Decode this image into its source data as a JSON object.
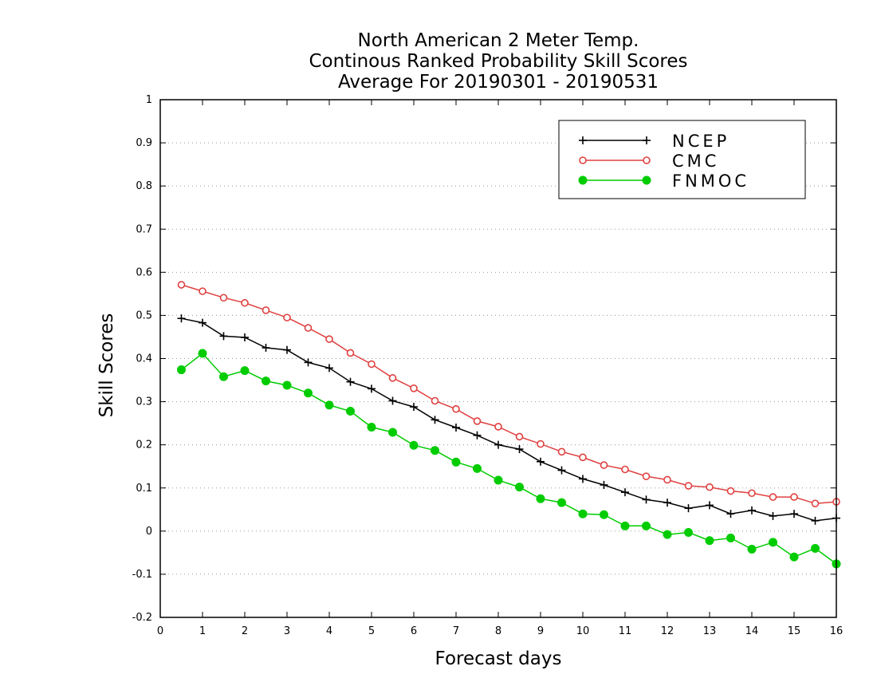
{
  "chart_data": {
    "type": "line",
    "title": [
      "North American 2 Meter Temp.",
      "Continous Ranked Probability Skill Scores",
      "Average For 20190301 - 20190531"
    ],
    "xlabel": "Forecast days",
    "ylabel": "Skill Scores",
    "xlim": [
      0,
      16
    ],
    "ylim": [
      -0.2,
      1
    ],
    "xticks": [
      "0",
      "1",
      "2",
      "3",
      "4",
      "5",
      "6",
      "7",
      "8",
      "9",
      "10",
      "11",
      "12",
      "13",
      "14",
      "15",
      "16"
    ],
    "yticks": [
      "-0.2",
      "-0.1",
      "0",
      "0.1",
      "0.2",
      "0.3",
      "0.4",
      "0.5",
      "0.6",
      "0.7",
      "0.8",
      "0.9",
      "1"
    ],
    "grid": "horizontal-dotted",
    "legend_position": "top-right",
    "x": [
      0.5,
      1,
      1.5,
      2,
      2.5,
      3,
      3.5,
      4,
      4.5,
      5,
      5.5,
      6,
      6.5,
      7,
      7.5,
      8,
      8.5,
      9,
      9.5,
      10,
      10.5,
      11,
      11.5,
      12,
      12.5,
      13,
      13.5,
      14,
      14.5,
      15,
      15.5,
      16
    ],
    "series": [
      {
        "name": "NCEP",
        "color": "#000000",
        "marker": "plus",
        "values": [
          0.493,
          0.483,
          0.452,
          0.449,
          0.425,
          0.42,
          0.391,
          0.378,
          0.346,
          0.33,
          0.302,
          0.288,
          0.258,
          0.24,
          0.222,
          0.2,
          0.19,
          0.161,
          0.141,
          0.121,
          0.107,
          0.09,
          0.073,
          0.066,
          0.053,
          0.06,
          0.04,
          0.048,
          0.035,
          0.04,
          0.024,
          0.03
        ]
      },
      {
        "name": "CMC",
        "color": "#e04040",
        "marker": "open-circle",
        "values": [
          0.571,
          0.556,
          0.541,
          0.529,
          0.512,
          0.495,
          0.471,
          0.445,
          0.413,
          0.387,
          0.355,
          0.331,
          0.302,
          0.283,
          0.255,
          0.242,
          0.219,
          0.202,
          0.184,
          0.171,
          0.153,
          0.143,
          0.127,
          0.119,
          0.105,
          0.102,
          0.093,
          0.088,
          0.079,
          0.079,
          0.064,
          0.068
        ]
      },
      {
        "name": "FNMOC",
        "color": "#00cc00",
        "marker": "filled-circle",
        "values": [
          0.374,
          0.412,
          0.358,
          0.372,
          0.348,
          0.338,
          0.32,
          0.292,
          0.278,
          0.241,
          0.229,
          0.199,
          0.187,
          0.16,
          0.145,
          0.118,
          0.102,
          0.075,
          0.066,
          0.04,
          0.038,
          0.012,
          0.012,
          -0.008,
          -0.003,
          -0.022,
          -0.016,
          -0.042,
          -0.026,
          -0.06,
          -0.04,
          -0.076
        ]
      }
    ]
  }
}
